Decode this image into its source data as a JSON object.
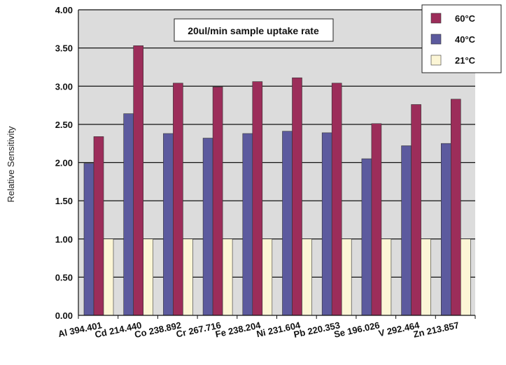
{
  "chart_data": {
    "type": "bar",
    "title": "",
    "annotation": "20ul/min sample uptake rate",
    "xlabel": "",
    "ylabel": "Relative Sensitivity",
    "ylim": [
      0,
      4
    ],
    "yticks": [
      "0.00",
      "0.50",
      "1.00",
      "1.50",
      "2.00",
      "2.50",
      "3.00",
      "3.50",
      "4.00"
    ],
    "grid": true,
    "legend_position": "top-right",
    "categories": [
      "Al 394.401",
      "Cd 214.440",
      "Co 238.892",
      "Cr 267.716",
      "Fe 238.204",
      "Ni 231.604",
      "Pb 220.353",
      "Se 196.026",
      "V 292.464",
      "Zn 213.857"
    ],
    "series": [
      {
        "name": "40°C",
        "color": "#5c5a9e",
        "values": [
          1.99,
          2.64,
          2.38,
          2.32,
          2.38,
          2.41,
          2.39,
          2.05,
          2.22,
          2.25
        ]
      },
      {
        "name": "60°C",
        "color": "#9c2d5a",
        "values": [
          2.34,
          3.53,
          3.04,
          2.99,
          3.06,
          3.11,
          3.04,
          2.51,
          2.76,
          2.83
        ]
      },
      {
        "name": "21°C",
        "color": "#fcf6d6",
        "values": [
          1.0,
          1.0,
          1.0,
          1.0,
          1.0,
          1.0,
          1.0,
          1.0,
          1.0,
          1.0
        ]
      }
    ],
    "legend_order": [
      "60°C",
      "40°C",
      "21°C"
    ]
  }
}
